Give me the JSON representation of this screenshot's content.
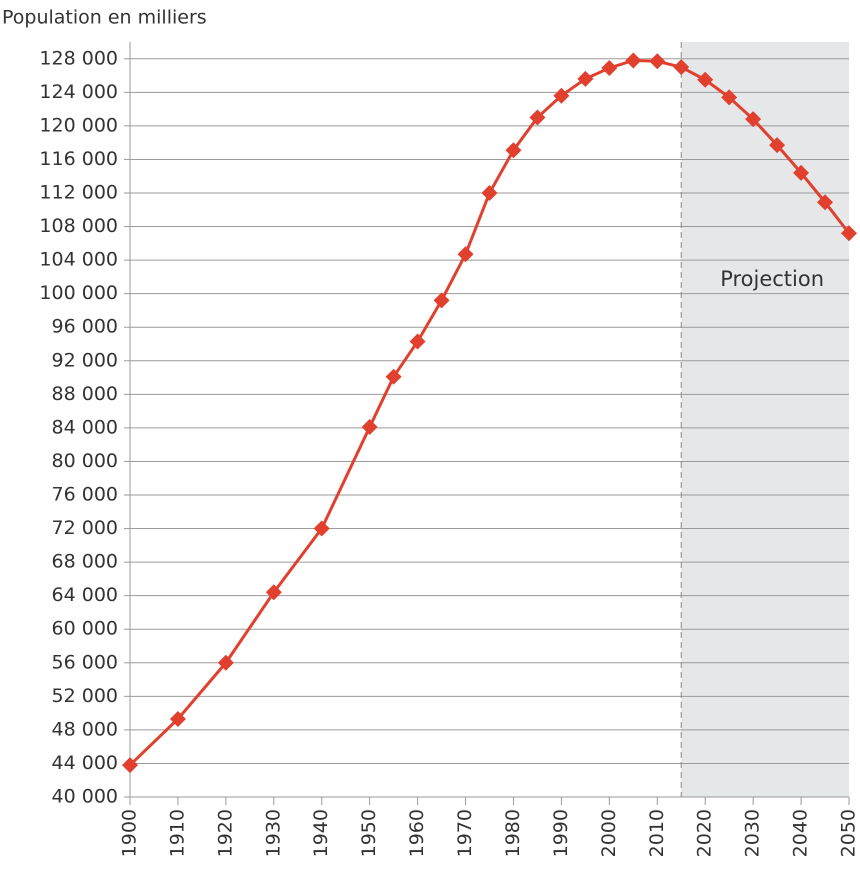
{
  "chart_data": {
    "type": "line",
    "title": "Population en milliers",
    "x": [
      1900,
      1910,
      1920,
      1930,
      1940,
      1950,
      1955,
      1960,
      1965,
      1970,
      1975,
      1980,
      1985,
      1990,
      1995,
      2000,
      2005,
      2010,
      2015,
      2020,
      2025,
      2030,
      2035,
      2040,
      2045,
      2050
    ],
    "series": [
      {
        "color": "#e2402e",
        "values": [
          43800,
          49300,
          56000,
          64400,
          72000,
          84100,
          90100,
          94300,
          99200,
          104700,
          112000,
          117100,
          121000,
          123600,
          125600,
          126900,
          127800,
          127700,
          127000,
          125500,
          123400,
          120800,
          117700,
          114400,
          110900,
          107200
        ]
      }
    ],
    "xlim": [
      1900,
      2050
    ],
    "xticks": [
      1900,
      1910,
      1920,
      1930,
      1940,
      1950,
      1960,
      1970,
      1980,
      1990,
      2000,
      2010,
      2020,
      2030,
      2040,
      2050
    ],
    "ylim": [
      40000,
      130000
    ],
    "yticks": [
      {
        "value": 40000,
        "label": "40 000"
      },
      {
        "value": 44000,
        "label": "44 000"
      },
      {
        "value": 48000,
        "label": "48 000"
      },
      {
        "value": 52000,
        "label": "52 000"
      },
      {
        "value": 56000,
        "label": "56 000"
      },
      {
        "value": 60000,
        "label": "60 000"
      },
      {
        "value": 64000,
        "label": "64 000"
      },
      {
        "value": 68000,
        "label": "68 000"
      },
      {
        "value": 72000,
        "label": "72 000"
      },
      {
        "value": 76000,
        "label": "76 000"
      },
      {
        "value": 80000,
        "label": "80 000"
      },
      {
        "value": 84000,
        "label": "84 000"
      },
      {
        "value": 88000,
        "label": "88 000"
      },
      {
        "value": 92000,
        "label": "92 000"
      },
      {
        "value": 96000,
        "label": "96 000"
      },
      {
        "value": 100000,
        "label": "100 000"
      },
      {
        "value": 104000,
        "label": "104 000"
      },
      {
        "value": 108000,
        "label": "108 000"
      },
      {
        "value": 112000,
        "label": "112 000"
      },
      {
        "value": 116000,
        "label": "116 000"
      },
      {
        "value": 120000,
        "label": "120 000"
      },
      {
        "value": 124000,
        "label": "124 000"
      },
      {
        "value": 128000,
        "label": "128 000"
      }
    ],
    "grid": true,
    "projection": {
      "label": "Projection",
      "start": 2015
    }
  }
}
